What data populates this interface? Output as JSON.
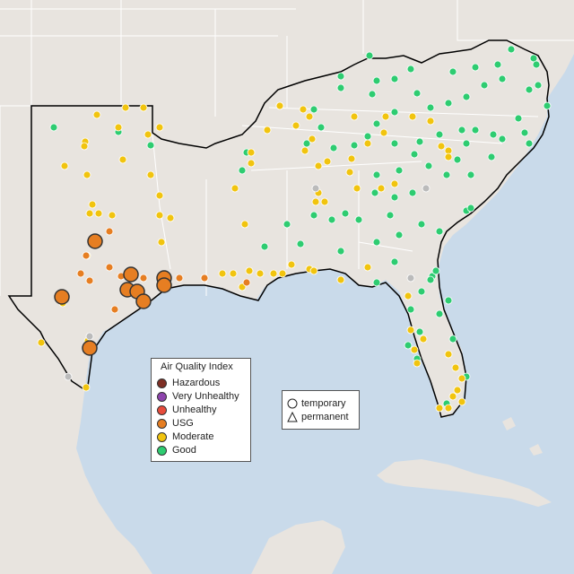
{
  "legend_aqi": {
    "title": "Air Quality Index",
    "items": [
      {
        "label": "Hazardous",
        "color": "#7e2f24"
      },
      {
        "label": "Very Unhealthy",
        "color": "#8e44ad"
      },
      {
        "label": "Unhealthy",
        "color": "#e74c3c"
      },
      {
        "label": "USG",
        "color": "#e67e22"
      },
      {
        "label": "Moderate",
        "color": "#f1c40f"
      },
      {
        "label": "Good",
        "color": "#2ecc71"
      }
    ]
  },
  "legend_shape": {
    "items": [
      {
        "label": "temporary",
        "shape": "circle-icon"
      },
      {
        "label": "permanent",
        "shape": "triangle-icon"
      }
    ]
  },
  "colors": {
    "water": "#c9daea",
    "land": "#e8e4df",
    "state_border": "#ffffff",
    "region_outline": "#000000",
    "no_data": "#bbbbbb"
  }
}
